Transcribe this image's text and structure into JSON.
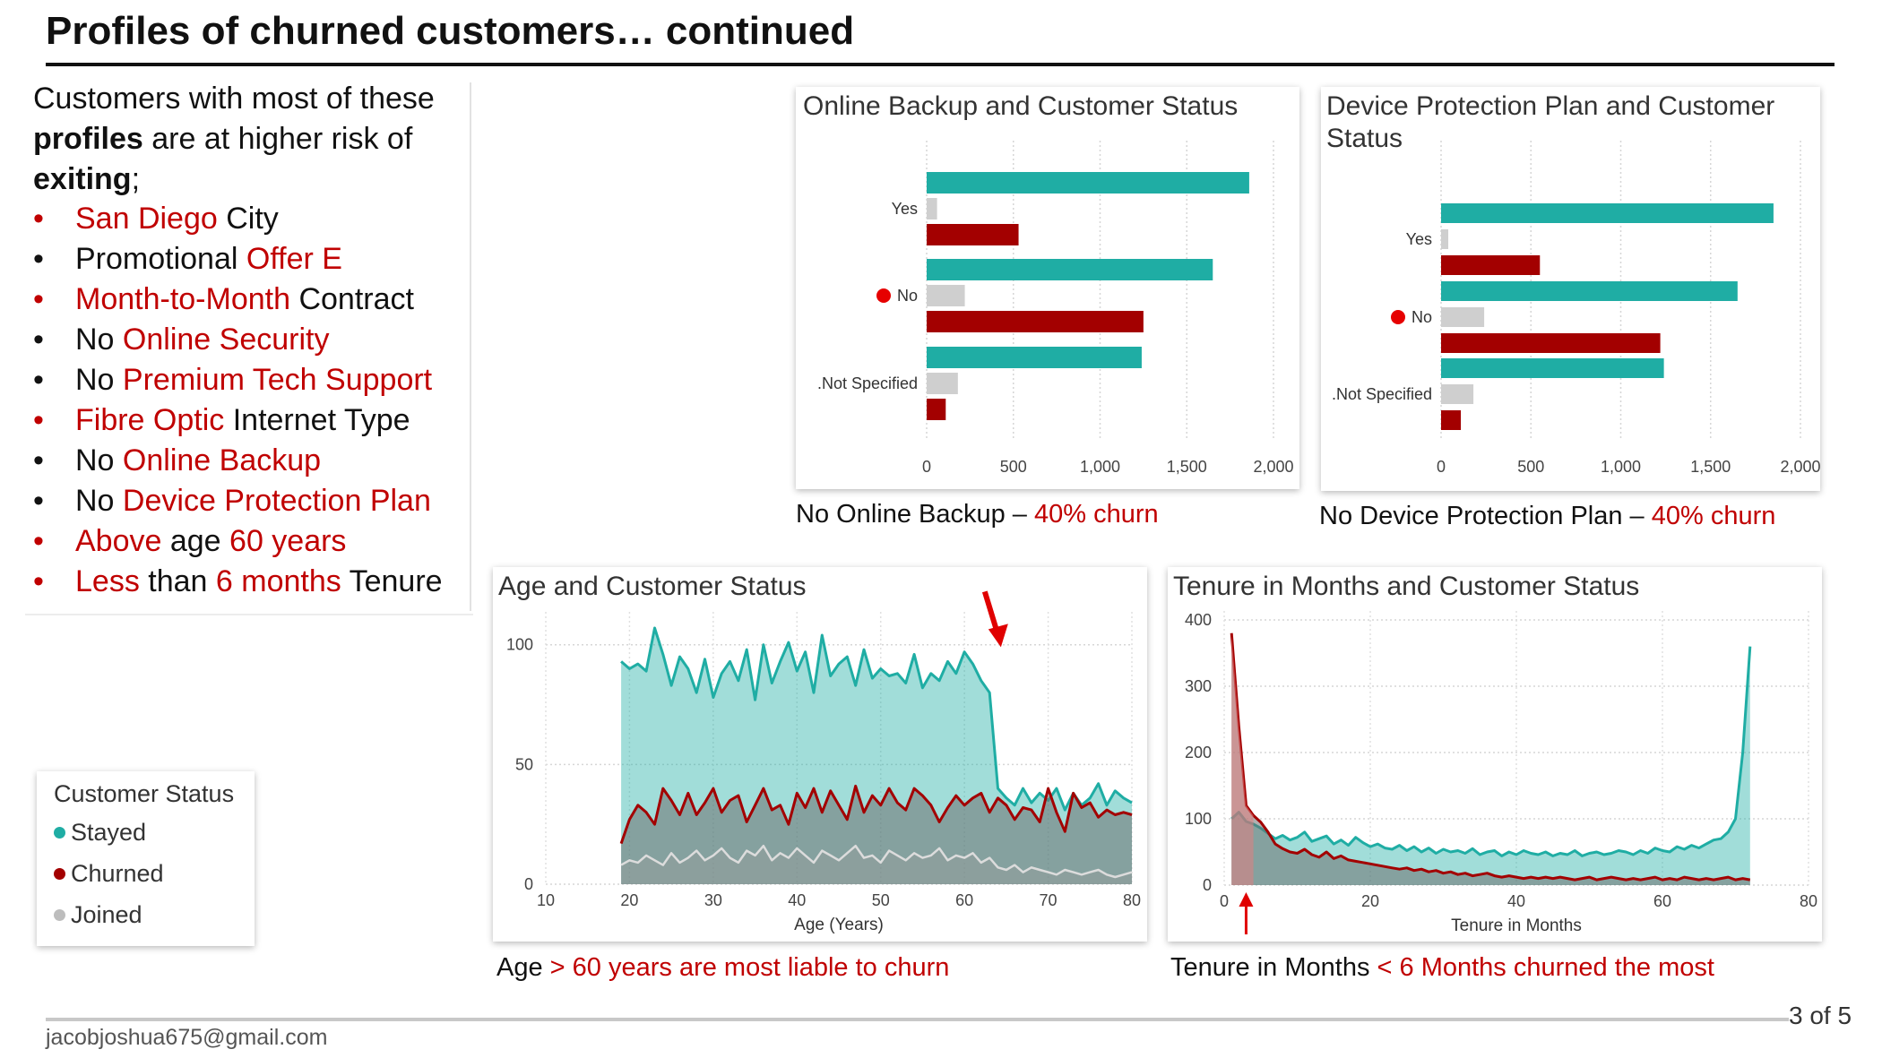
{
  "slide": {
    "title": "Profiles of churned customers… continued",
    "footer_email": "jacobjoshua675@gmail.com",
    "page": "3 of 5"
  },
  "intro": {
    "line1": "Customers with most of these",
    "bold1": "profiles",
    "line2": " are at higher risk of",
    "bold2": "exiting",
    "end": ";"
  },
  "bullets": [
    {
      "bullet_color": "#c00000",
      "parts": [
        {
          "t": "San Diego",
          "red": true
        },
        {
          "t": " City",
          "red": false
        }
      ]
    },
    {
      "bullet_color": "#111111",
      "parts": [
        {
          "t": "Promotional ",
          "red": false
        },
        {
          "t": "Offer E",
          "red": true
        }
      ]
    },
    {
      "bullet_color": "#c00000",
      "parts": [
        {
          "t": "Month-to-Month",
          "red": true
        },
        {
          "t": " Contract",
          "red": false
        }
      ]
    },
    {
      "bullet_color": "#111111",
      "parts": [
        {
          "t": "No ",
          "red": false
        },
        {
          "t": "Online Security",
          "red": true
        }
      ]
    },
    {
      "bullet_color": "#111111",
      "parts": [
        {
          "t": "No ",
          "red": false
        },
        {
          "t": "Premium Tech Support",
          "red": true
        }
      ]
    },
    {
      "bullet_color": "#c00000",
      "parts": [
        {
          "t": "Fibre Optic",
          "red": true
        },
        {
          "t": " Internet Type",
          "red": false
        }
      ]
    },
    {
      "bullet_color": "#111111",
      "parts": [
        {
          "t": "No ",
          "red": false
        },
        {
          "t": "Online Backup",
          "red": true
        }
      ]
    },
    {
      "bullet_color": "#111111",
      "parts": [
        {
          "t": "No ",
          "red": false
        },
        {
          "t": "Device Protection Plan",
          "red": true
        }
      ]
    },
    {
      "bullet_color": "#c00000",
      "parts": [
        {
          "t": "Above",
          "red": true
        },
        {
          "t": " age ",
          "red": false
        },
        {
          "t": "60 years",
          "red": true
        }
      ]
    },
    {
      "bullet_color": "#c00000",
      "parts": [
        {
          "t": "Less",
          "red": true
        },
        {
          "t": " than ",
          "red": false
        },
        {
          "t": "6 months",
          "red": true
        },
        {
          "t": " Tenure",
          "red": false
        }
      ]
    }
  ],
  "legend": {
    "title": "Customer Status",
    "items": [
      {
        "label": "Stayed",
        "color": "#1fada4"
      },
      {
        "label": "Churned",
        "color": "#a30000"
      },
      {
        "label": "Joined",
        "color": "#bdbdbd"
      }
    ]
  },
  "captions": {
    "backup": {
      "text": "No Online Backup – ",
      "highlight": "40% churn"
    },
    "device": {
      "text": "No Device Protection Plan – ",
      "highlight": "40% churn"
    },
    "age": {
      "text": "Age ",
      "highlight": "> 60 years are most liable to churn"
    },
    "tenure": {
      "text": "Tenure in Months ",
      "highlight": "< 6 Months churned the most"
    }
  },
  "colors": {
    "stayed": "#1fada4",
    "churned": "#a30000",
    "joined": "#cfcfcf",
    "accent": "#c00000"
  },
  "chart_data": [
    {
      "type": "bar",
      "orientation": "horizontal",
      "title": "Online Backup and Customer Status",
      "categories": [
        "Yes",
        "No",
        ".Not Specified"
      ],
      "highlight_category": "No",
      "series": [
        {
          "name": "Stayed",
          "values": [
            1860,
            1650,
            1240
          ]
        },
        {
          "name": "Joined",
          "values": [
            60,
            220,
            180
          ]
        },
        {
          "name": "Churned",
          "values": [
            530,
            1250,
            110
          ]
        }
      ],
      "xlim": [
        0,
        2000
      ],
      "xticks": [
        "0",
        "500",
        "1,000",
        "1,500",
        "2,000"
      ],
      "grid": true
    },
    {
      "type": "bar",
      "orientation": "horizontal",
      "title": "Device Protection Plan and Customer Status",
      "categories": [
        "Yes",
        "No",
        ".Not Specified"
      ],
      "highlight_category": "No",
      "series": [
        {
          "name": "Stayed",
          "values": [
            1850,
            1650,
            1240
          ]
        },
        {
          "name": "Joined",
          "values": [
            40,
            240,
            180
          ]
        },
        {
          "name": "Churned",
          "values": [
            550,
            1220,
            110
          ]
        }
      ],
      "xlim": [
        0,
        2000
      ],
      "xticks": [
        "0",
        "500",
        "1,000",
        "1,500",
        "2,000"
      ],
      "grid": true
    },
    {
      "type": "area",
      "title": "Age and Customer Status",
      "xlabel": "Age (Years)",
      "xlim": [
        10,
        80
      ],
      "ylim": [
        0,
        110
      ],
      "xticks": [
        10,
        20,
        30,
        40,
        50,
        60,
        70,
        80
      ],
      "yticks": [
        0,
        50,
        100
      ],
      "x": [
        19,
        20,
        21,
        22,
        23,
        24,
        25,
        26,
        27,
        28,
        29,
        30,
        31,
        32,
        33,
        34,
        35,
        36,
        37,
        38,
        39,
        40,
        41,
        42,
        43,
        44,
        45,
        46,
        47,
        48,
        49,
        50,
        51,
        52,
        53,
        54,
        55,
        56,
        57,
        58,
        59,
        60,
        61,
        62,
        63,
        64,
        65,
        66,
        67,
        68,
        69,
        70,
        71,
        72,
        73,
        74,
        75,
        76,
        77,
        78,
        79,
        80
      ],
      "series": [
        {
          "name": "Stayed",
          "values": [
            93,
            90,
            92,
            89,
            107,
            96,
            83,
            95,
            90,
            80,
            94,
            78,
            88,
            93,
            85,
            98,
            77,
            100,
            84,
            93,
            101,
            89,
            97,
            80,
            104,
            87,
            92,
            95,
            83,
            98,
            86,
            90,
            87,
            88,
            84,
            96,
            82,
            88,
            85,
            93,
            88,
            97,
            92,
            85,
            80,
            40,
            36,
            33,
            40,
            34,
            38,
            35,
            40,
            31,
            38,
            33,
            36,
            42,
            33,
            39,
            36,
            34
          ]
        },
        {
          "name": "Churned",
          "values": [
            17,
            27,
            33,
            30,
            25,
            40,
            35,
            29,
            38,
            29,
            34,
            40,
            30,
            35,
            37,
            26,
            33,
            40,
            31,
            33,
            25,
            38,
            32,
            40,
            30,
            39,
            33,
            27,
            41,
            30,
            37,
            33,
            40,
            34,
            31,
            40,
            37,
            33,
            26,
            32,
            37,
            33,
            36,
            38,
            30,
            36,
            33,
            27,
            32,
            31,
            26,
            40,
            30,
            22,
            38,
            32,
            34,
            28,
            31,
            29,
            30,
            29
          ]
        },
        {
          "name": "Joined",
          "values": [
            8,
            10,
            9,
            12,
            10,
            8,
            13,
            9,
            11,
            14,
            10,
            12,
            15,
            11,
            9,
            14,
            12,
            16,
            10,
            13,
            11,
            15,
            12,
            9,
            14,
            12,
            10,
            13,
            16,
            11,
            12,
            9,
            14,
            12,
            10,
            13,
            11,
            12,
            15,
            10,
            12,
            11,
            13,
            9,
            11,
            7,
            6,
            8,
            5,
            7,
            6,
            5,
            4,
            6,
            5,
            4,
            5,
            6,
            4,
            3,
            4,
            5
          ]
        }
      ],
      "annotation": "red arrow at age ~64"
    },
    {
      "type": "area",
      "title": "Tenure in Months and Customer Status",
      "xlabel": "Tenure in Months",
      "xlim": [
        0,
        80
      ],
      "ylim": [
        0,
        400
      ],
      "xticks": [
        0,
        20,
        40,
        60,
        80
      ],
      "yticks": [
        0,
        100,
        200,
        300,
        400
      ],
      "x": [
        1,
        2,
        3,
        4,
        5,
        6,
        7,
        8,
        9,
        10,
        11,
        12,
        13,
        14,
        15,
        16,
        17,
        18,
        19,
        20,
        21,
        22,
        23,
        24,
        25,
        26,
        27,
        28,
        29,
        30,
        31,
        32,
        33,
        34,
        35,
        36,
        37,
        38,
        39,
        40,
        41,
        42,
        43,
        44,
        45,
        46,
        47,
        48,
        49,
        50,
        51,
        52,
        53,
        54,
        55,
        56,
        57,
        58,
        59,
        60,
        61,
        62,
        63,
        64,
        65,
        66,
        67,
        68,
        69,
        70,
        71,
        72
      ],
      "series": [
        {
          "name": "Stayed",
          "values": [
            100,
            110,
            96,
            92,
            86,
            78,
            70,
            75,
            68,
            72,
            80,
            66,
            70,
            74,
            62,
            68,
            60,
            72,
            64,
            58,
            62,
            56,
            54,
            60,
            52,
            58,
            50,
            56,
            48,
            54,
            50,
            52,
            48,
            55,
            46,
            50,
            52,
            44,
            50,
            46,
            52,
            48,
            46,
            50,
            44,
            48,
            46,
            52,
            44,
            48,
            50,
            46,
            48,
            52,
            50,
            46,
            52,
            48,
            56,
            52,
            50,
            58,
            54,
            60,
            56,
            62,
            68,
            70,
            80,
            100,
            200,
            360
          ]
        },
        {
          "name": "Churned",
          "values": [
            380,
            240,
            120,
            105,
            95,
            80,
            62,
            55,
            50,
            48,
            54,
            46,
            42,
            50,
            40,
            44,
            38,
            36,
            34,
            32,
            30,
            28,
            26,
            24,
            26,
            22,
            24,
            20,
            22,
            18,
            20,
            16,
            18,
            14,
            16,
            18,
            14,
            12,
            14,
            12,
            10,
            12,
            10,
            12,
            10,
            12,
            10,
            8,
            10,
            12,
            8,
            10,
            12,
            10,
            8,
            10,
            8,
            10,
            12,
            8,
            10,
            8,
            12,
            10,
            8,
            10,
            8,
            10,
            12,
            8,
            10,
            8
          ]
        }
      ],
      "annotation": "red arrow at tenure ~4 months"
    }
  ]
}
